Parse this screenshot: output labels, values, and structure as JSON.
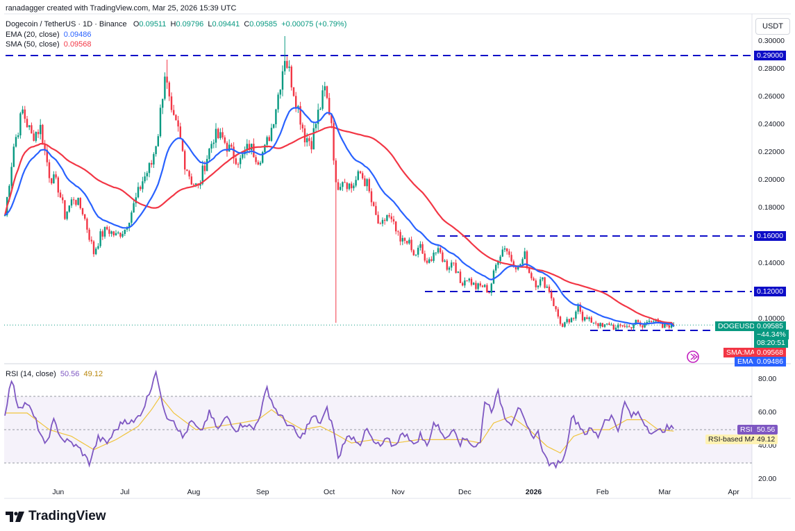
{
  "header": {
    "created": "ranadagger created with TradingView.com, Mar 25, 2026 15:39 UTC",
    "symbol": "Dogecoin / TetherUS · 1D · Binance",
    "o_label": "O",
    "o": "0.09511",
    "h_label": "H",
    "h": "0.09796",
    "l_label": "L",
    "l": "0.09441",
    "c_label": "C",
    "c": "0.09585",
    "change": "+0.00075 (+0.79%)",
    "ema_label": "EMA (20, close)",
    "ema_value": "0.09486",
    "sma_label": "SMA (50, close)",
    "sma_value": "0.09568"
  },
  "currency_button": "USDT",
  "price_axis": {
    "ticks": [
      "0.30000",
      "0.28000",
      "0.26000",
      "0.24000",
      "0.22000",
      "0.20000",
      "0.18000",
      "0.16000",
      "0.14000",
      "0.12000",
      "0.10000"
    ],
    "tick_values": [
      0.3,
      0.28,
      0.26,
      0.24,
      0.22,
      0.2,
      0.18,
      0.16,
      0.14,
      0.12,
      0.1
    ],
    "level_tags": [
      {
        "label": "0.29000",
        "value": 0.29
      },
      {
        "label": "0.16000",
        "value": 0.16
      },
      {
        "label": "0.12000",
        "value": 0.12
      }
    ],
    "symbol_tag": "DOGEUSDT",
    "price_tag": "0.09585",
    "pct_tag": "−44.34%",
    "countdown_tag": "08:20:51",
    "sma_tag_label": "SMA:MA",
    "sma_tag_value": "0.09568",
    "ema_tag_label": "EMA",
    "ema_tag_value": "0.09486"
  },
  "rsi_panel": {
    "label": "RSI (14, close)",
    "rsi_value": "50.56",
    "rsi_ma_value": "49.12",
    "rsi_tag_label": "RSI",
    "rsi_ma_tag_label": "RSI-based MA",
    "ticks": [
      "80.00",
      "60.00",
      "40.00",
      "20.00"
    ],
    "tick_values": [
      80,
      60,
      40,
      20
    ]
  },
  "time_axis": {
    "labels": [
      "Jun",
      "Jul",
      "Aug",
      "Sep",
      "Oct",
      "Nov",
      "Dec",
      "2026",
      "Feb",
      "Mar",
      "Apr"
    ],
    "day_index": [
      24,
      54,
      85,
      116,
      146,
      177,
      207,
      238,
      269,
      297,
      328
    ]
  },
  "brand": "TradingView",
  "colors": {
    "up": "#089981",
    "down": "#f23645",
    "ema": "#2962ff",
    "sma": "#f23645",
    "rsi": "#7e57c2",
    "rsi_ma": "#f0c43c",
    "level": "#0d0dc7"
  },
  "chart_data": [
    {
      "type": "candlestick",
      "title": "Dogecoin / TetherUS · 1D · Binance",
      "x_start": "2025-05-08",
      "x_end": "2026-03-25",
      "ylim": [
        0.085,
        0.305
      ],
      "support_resistance": [
        0.29,
        0.16,
        0.12,
        0.092
      ],
      "anchors": [
        [
          0,
          0.175
        ],
        [
          4,
          0.225
        ],
        [
          8,
          0.25
        ],
        [
          12,
          0.232
        ],
        [
          16,
          0.238
        ],
        [
          20,
          0.205
        ],
        [
          24,
          0.195
        ],
        [
          27,
          0.175
        ],
        [
          31,
          0.188
        ],
        [
          35,
          0.178
        ],
        [
          38,
          0.16
        ],
        [
          40,
          0.148
        ],
        [
          43,
          0.16
        ],
        [
          46,
          0.165
        ],
        [
          50,
          0.16
        ],
        [
          54,
          0.165
        ],
        [
          58,
          0.182
        ],
        [
          62,
          0.2
        ],
        [
          66,
          0.212
        ],
        [
          69,
          0.235
        ],
        [
          72,
          0.278
        ],
        [
          75,
          0.245
        ],
        [
          78,
          0.236
        ],
        [
          81,
          0.213
        ],
        [
          84,
          0.2
        ],
        [
          87,
          0.194
        ],
        [
          90,
          0.212
        ],
        [
          94,
          0.232
        ],
        [
          98,
          0.23
        ],
        [
          102,
          0.22
        ],
        [
          106,
          0.214
        ],
        [
          110,
          0.225
        ],
        [
          114,
          0.216
        ],
        [
          117,
          0.222
        ],
        [
          120,
          0.238
        ],
        [
          123,
          0.262
        ],
        [
          126,
          0.29
        ],
        [
          129,
          0.272
        ],
        [
          132,
          0.252
        ],
        [
          135,
          0.232
        ],
        [
          138,
          0.228
        ],
        [
          141,
          0.248
        ],
        [
          144,
          0.265
        ],
        [
          147,
          0.243
        ],
        [
          149,
          0.195
        ],
        [
          152,
          0.202
        ],
        [
          156,
          0.195
        ],
        [
          160,
          0.205
        ],
        [
          163,
          0.197
        ],
        [
          166,
          0.178
        ],
        [
          169,
          0.165
        ],
        [
          172,
          0.175
        ],
        [
          175,
          0.167
        ],
        [
          178,
          0.155
        ],
        [
          181,
          0.158
        ],
        [
          184,
          0.145
        ],
        [
          187,
          0.152
        ],
        [
          190,
          0.138
        ],
        [
          193,
          0.149
        ],
        [
          196,
          0.147
        ],
        [
          199,
          0.138
        ],
        [
          202,
          0.142
        ],
        [
          205,
          0.126
        ],
        [
          208,
          0.13
        ],
        [
          212,
          0.123
        ],
        [
          215,
          0.124
        ],
        [
          218,
          0.12
        ],
        [
          222,
          0.145
        ],
        [
          225,
          0.153
        ],
        [
          228,
          0.143
        ],
        [
          231,
          0.137
        ],
        [
          234,
          0.146
        ],
        [
          236,
          0.134
        ],
        [
          239,
          0.126
        ],
        [
          242,
          0.128
        ],
        [
          245,
          0.121
        ],
        [
          248,
          0.106
        ],
        [
          251,
          0.094
        ],
        [
          253,
          0.098
        ],
        [
          256,
          0.099
        ],
        [
          258,
          0.113
        ],
        [
          260,
          0.101
        ],
        [
          263,
          0.099
        ],
        [
          266,
          0.098
        ],
        [
          269,
          0.094
        ],
        [
          272,
          0.097
        ],
        [
          275,
          0.093
        ],
        [
          278,
          0.096
        ],
        [
          281,
          0.094
        ],
        [
          284,
          0.098
        ],
        [
          287,
          0.094
        ],
        [
          290,
          0.101
        ],
        [
          293,
          0.098
        ],
        [
          296,
          0.094
        ],
        [
          298,
          0.096
        ],
        [
          301,
          0.0959
        ]
      ],
      "last": {
        "open": 0.09511,
        "high": 0.09796,
        "low": 0.09441,
        "close": 0.09585,
        "change": 0.00075,
        "change_pct": 0.79
      },
      "ema20_last": 0.09486,
      "sma50_last": 0.09568,
      "spikes": [
        {
          "day": 149,
          "low": 0.0975
        },
        {
          "day": 126,
          "high": 0.304
        },
        {
          "day": 73,
          "high": 0.287
        }
      ]
    },
    {
      "type": "line",
      "title": "RSI (14, close)",
      "ylim": [
        15,
        85
      ],
      "bands": [
        30,
        50,
        70
      ],
      "series": [
        {
          "name": "RSI",
          "values_anchor": [
            [
              0,
              60
            ],
            [
              3,
              80
            ],
            [
              6,
              64
            ],
            [
              10,
              66
            ],
            [
              14,
              55
            ],
            [
              18,
              40
            ],
            [
              22,
              55
            ],
            [
              26,
              44
            ],
            [
              30,
              42
            ],
            [
              34,
              38
            ],
            [
              38,
              30
            ],
            [
              42,
              45
            ],
            [
              46,
              42
            ],
            [
              50,
              50
            ],
            [
              54,
              56
            ],
            [
              58,
              54
            ],
            [
              62,
              62
            ],
            [
              65,
              72
            ],
            [
              68,
              86
            ],
            [
              70,
              70
            ],
            [
              73,
              58
            ],
            [
              76,
              56
            ],
            [
              80,
              45
            ],
            [
              84,
              55
            ],
            [
              88,
              48
            ],
            [
              92,
              60
            ],
            [
              96,
              50
            ],
            [
              100,
              58
            ],
            [
              104,
              50
            ],
            [
              108,
              54
            ],
            [
              112,
              50
            ],
            [
              115,
              60
            ],
            [
              118,
              75
            ],
            [
              121,
              64
            ],
            [
              124,
              58
            ],
            [
              127,
              54
            ],
            [
              130,
              50
            ],
            [
              133,
              44
            ],
            [
              136,
              52
            ],
            [
              139,
              58
            ],
            [
              142,
              54
            ],
            [
              145,
              62
            ],
            [
              148,
              50
            ],
            [
              150,
              32
            ],
            [
              153,
              44
            ],
            [
              156,
              46
            ],
            [
              160,
              42
            ],
            [
              163,
              50
            ],
            [
              166,
              42
            ],
            [
              169,
              40
            ],
            [
              172,
              44
            ],
            [
              175,
              40
            ],
            [
              178,
              46
            ],
            [
              181,
              48
            ],
            [
              184,
              40
            ],
            [
              187,
              47
            ],
            [
              190,
              40
            ],
            [
              193,
              54
            ],
            [
              196,
              50
            ],
            [
              199,
              44
            ],
            [
              202,
              52
            ],
            [
              205,
              42
            ],
            [
              208,
              45
            ],
            [
              211,
              40
            ],
            [
              214,
              42
            ],
            [
              216,
              68
            ],
            [
              219,
              62
            ],
            [
              222,
              72
            ],
            [
              225,
              58
            ],
            [
              228,
              54
            ],
            [
              231,
              64
            ],
            [
              234,
              54
            ],
            [
              237,
              46
            ],
            [
              240,
              48
            ],
            [
              243,
              34
            ],
            [
              246,
              28
            ],
            [
              249,
              30
            ],
            [
              252,
              34
            ],
            [
              255,
              58
            ],
            [
              258,
              54
            ],
            [
              261,
              48
            ],
            [
              264,
              50
            ],
            [
              267,
              46
            ],
            [
              270,
              56
            ],
            [
              273,
              58
            ],
            [
              276,
              50
            ],
            [
              279,
              66
            ],
            [
              282,
              58
            ],
            [
              285,
              60
            ],
            [
              288,
              54
            ],
            [
              290,
              50
            ],
            [
              293,
              48
            ],
            [
              296,
              50
            ],
            [
              298,
              51
            ],
            [
              301,
              50.56
            ]
          ]
        },
        {
          "name": "RSI-based MA",
          "values_anchor": [
            [
              0,
              60
            ],
            [
              10,
              60
            ],
            [
              20,
              50
            ],
            [
              30,
              46
            ],
            [
              40,
              38
            ],
            [
              50,
              44
            ],
            [
              60,
              52
            ],
            [
              66,
              62
            ],
            [
              70,
              70
            ],
            [
              76,
              60
            ],
            [
              86,
              50
            ],
            [
              96,
              52
            ],
            [
              106,
              54
            ],
            [
              114,
              56
            ],
            [
              120,
              62
            ],
            [
              126,
              56
            ],
            [
              134,
              50
            ],
            [
              142,
              52
            ],
            [
              148,
              48
            ],
            [
              156,
              42
            ],
            [
              166,
              44
            ],
            [
              176,
              42
            ],
            [
              186,
              44
            ],
            [
              196,
              44
            ],
            [
              206,
              44
            ],
            [
              214,
              42
            ],
            [
              220,
              54
            ],
            [
              228,
              58
            ],
            [
              236,
              50
            ],
            [
              244,
              40
            ],
            [
              250,
              36
            ],
            [
              256,
              46
            ],
            [
              264,
              50
            ],
            [
              272,
              50
            ],
            [
              280,
              56
            ],
            [
              288,
              56
            ],
            [
              294,
              50
            ],
            [
              301,
              49.12
            ]
          ]
        }
      ],
      "last_rsi": 50.56,
      "last_rsi_ma": 49.12
    }
  ]
}
